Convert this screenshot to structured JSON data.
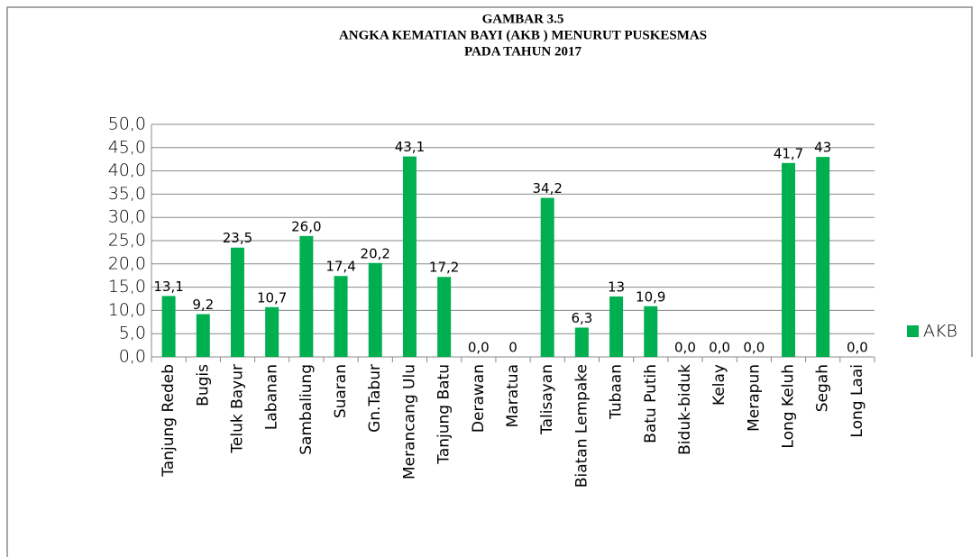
{
  "chart_data": {
    "type": "bar",
    "title": [
      "GAMBAR 3.5",
      "ANGKA KEMATIAN BAYI (AKB ) MENURUT PUSKESMAS",
      "PADA TAHUN 2017"
    ],
    "categories": [
      "Tanjung Redeb",
      "Bugis",
      "Teluk Bayur",
      "Labanan",
      "Sambaliung",
      "Suaran",
      "Gn.Tabur",
      "Merancang Ulu",
      "Tanjung Batu",
      "Derawan",
      "Maratua",
      "Talisayan",
      "Biatan Lempake",
      "Tubaan",
      "Batu Putih",
      "Biduk-biduk",
      "Kelay",
      "Merapun",
      "Long Keluh",
      "Segah",
      "Long Laai"
    ],
    "series": [
      {
        "name": "AKB",
        "color": "#00b050",
        "values": [
          13.1,
          9.2,
          23.5,
          10.7,
          26.0,
          17.4,
          20.2,
          43.1,
          17.2,
          0.0,
          0,
          34.2,
          6.3,
          13,
          10.9,
          0.0,
          0.0,
          0.0,
          41.7,
          43,
          0.0
        ],
        "value_labels": [
          "13,1",
          "9,2",
          "23,5",
          "10,7",
          "26,0",
          "17,4",
          "20,2",
          "43,1",
          "17,2",
          "0,0",
          "0",
          "34,2",
          "6,3",
          "13",
          "10,9",
          "0,0",
          "0,0",
          "0,0",
          "41,7",
          "43",
          "0,0"
        ]
      }
    ],
    "ylim": [
      0,
      50
    ],
    "yticks": [
      {
        "value": 0,
        "label": "0,0"
      },
      {
        "value": 5,
        "label": "5,0"
      },
      {
        "value": 10,
        "label": "10,0"
      },
      {
        "value": 15,
        "label": "15,0"
      },
      {
        "value": 20,
        "label": "20,0"
      },
      {
        "value": 25,
        "label": "25,0"
      },
      {
        "value": 30,
        "label": "30,0"
      },
      {
        "value": 35,
        "label": "35,0"
      },
      {
        "value": 40,
        "label": "40,0"
      },
      {
        "value": 45,
        "label": "45,0"
      },
      {
        "value": 50,
        "label": "50,0"
      }
    ],
    "grid": true,
    "legend": "right"
  }
}
